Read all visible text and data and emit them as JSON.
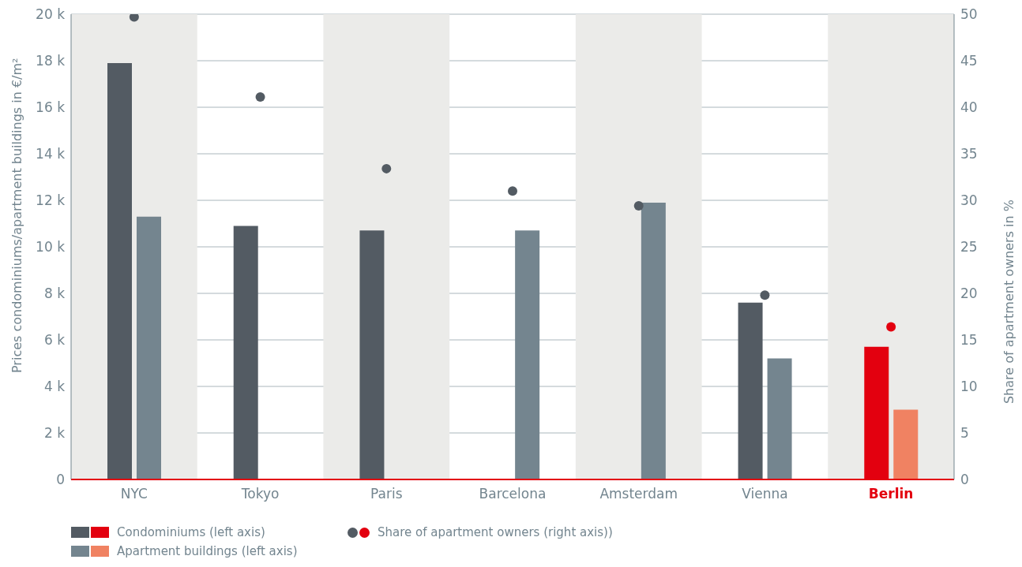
{
  "chart_data": {
    "type": "bar",
    "ylabel": "Prices condominiums/apartment buildings in €/m²",
    "y2label": "Share of apartment owners in %",
    "categories": [
      "NYC",
      "Tokyo",
      "Paris",
      "Barcelona",
      "Amsterdam",
      "Vienna",
      "Berlin"
    ],
    "series": [
      {
        "name": "Condominiums (left axis)",
        "color": "#535b63",
        "colors": [
          "#535b63",
          "#535b63",
          "#535b63",
          "#535b63",
          "#535b63",
          "#535b63",
          "#e3000f"
        ],
        "values": [
          17900,
          10900,
          10700,
          null,
          null,
          7600,
          5700
        ]
      },
      {
        "name": "Apartment buildings (left axis)",
        "color": "#74858f",
        "colors": [
          "#74858f",
          "#74858f",
          "#74858f",
          "#74858f",
          "#74858f",
          "#74858f",
          "#f08262"
        ],
        "values": [
          11300,
          null,
          null,
          10700,
          11900,
          5200,
          3000
        ]
      },
      {
        "name": "Share of apartment owners (right axis))",
        "type": "scatter",
        "axis": "y2",
        "color": "#535b63",
        "colors": [
          "#535b63",
          "#535b63",
          "#535b63",
          "#535b63",
          "#535b63",
          "#535b63",
          "#e3000f"
        ],
        "values": [
          49.7,
          41.1,
          33.4,
          31.0,
          29.4,
          19.8,
          16.4
        ]
      }
    ],
    "ylim": [
      0,
      20000
    ],
    "yticks": [
      0,
      {
        "value": 2000,
        "label": "2 k"
      },
      {
        "value": 4000,
        "label": "4 k"
      },
      {
        "value": 6000,
        "label": "6 k"
      },
      {
        "value": 8000,
        "label": "8 k"
      },
      {
        "value": 10000,
        "label": "10 k"
      },
      {
        "value": 12000,
        "label": "12 k"
      },
      {
        "value": 14000,
        "label": "14 k"
      },
      {
        "value": 16000,
        "label": "16 k"
      },
      {
        "value": 18000,
        "label": "18 k"
      },
      {
        "value": 20000,
        "label": "20 k"
      }
    ],
    "y2lim": [
      0,
      50
    ],
    "y2ticks": [
      0,
      5,
      10,
      15,
      20,
      25,
      30,
      35,
      40,
      45,
      50
    ],
    "bands": [
      {
        "axis": "x",
        "from": "NYC",
        "to": "NYC",
        "color": "#ebebe9"
      },
      {
        "axis": "x",
        "from": "Paris",
        "to": "Paris",
        "color": "#ebebe9"
      },
      {
        "axis": "x",
        "from": "Amsterdam",
        "to": "Amsterdam",
        "color": "#ebebe9"
      },
      {
        "axis": "x",
        "from": "Berlin",
        "to": "Berlin",
        "color": "#ebebe9"
      }
    ],
    "grid": "y",
    "legend": "bottom",
    "marker": "circle"
  }
}
